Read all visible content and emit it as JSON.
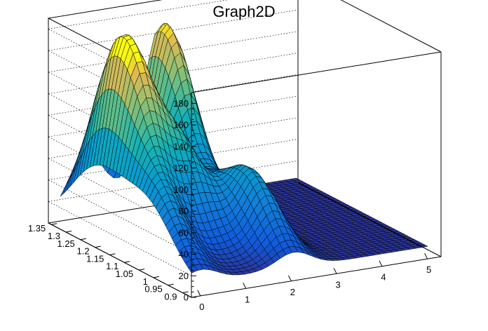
{
  "chart_data": {
    "type": "surface",
    "title": "Graph2D",
    "palette": "kBird",
    "grid": true,
    "xlim": [
      -0.2,
      5.3
    ],
    "ylim": [
      0.87,
      1.36
    ],
    "zlim": [
      0,
      190
    ],
    "x_ticks": [
      "0",
      "1",
      "2",
      "3",
      "4",
      "5"
    ],
    "x_tick_values": [
      0,
      1,
      2,
      3,
      4,
      5
    ],
    "y_ticks": [
      "0.9",
      "0.95",
      "1",
      "1.05",
      "1.1",
      "1.15",
      "1.2",
      "1.25",
      "1.3",
      "1.35"
    ],
    "y_tick_values": [
      0.9,
      0.95,
      1.0,
      1.05,
      1.1,
      1.15,
      1.2,
      1.25,
      1.3,
      1.35
    ],
    "z_ticks": [
      "0",
      "20",
      "40",
      "60",
      "80",
      "100",
      "120",
      "140",
      "160",
      "180"
    ],
    "z_tick_values": [
      0,
      20,
      40,
      60,
      80,
      100,
      120,
      140,
      160,
      180
    ],
    "peaks": [
      {
        "x": 0.55,
        "y": 1.22,
        "z": 165
      },
      {
        "x": 2.2,
        "y": 1.33,
        "z": 165
      },
      {
        "x": 0.2,
        "y": 1.05,
        "z": 60
      },
      {
        "x": 1.3,
        "y": 1.15,
        "z": 85
      },
      {
        "x": 2.25,
        "y": 1.05,
        "z": 70
      }
    ]
  }
}
